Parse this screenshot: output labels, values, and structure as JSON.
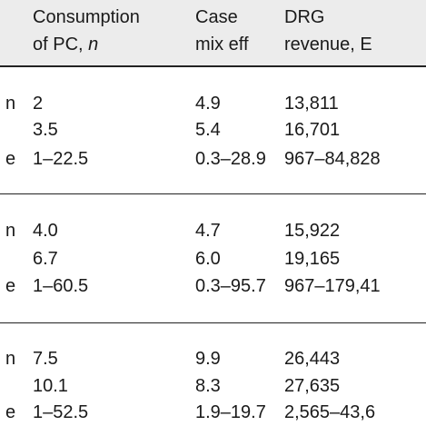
{
  "header": {
    "col1_line1": "Consumption",
    "col1_line2_prefix": "of PC, ",
    "col1_line2_var": "n",
    "col2_line1": "Case",
    "col2_line2": "mix eff",
    "col3_line1": "DRG",
    "col3_line2": "revenue, E"
  },
  "groups": [
    {
      "rows": [
        {
          "stat": "n",
          "c1": "2",
          "c2": "4.9",
          "c3": "13,811"
        },
        {
          "stat": "",
          "c1": "3.5",
          "c2": "5.4",
          "c3": "16,701"
        },
        {
          "stat": "e",
          "c1": "1–22.5",
          "c2": "0.3–28.9",
          "c3": "967–84,828"
        }
      ]
    },
    {
      "rows": [
        {
          "stat": "n",
          "c1": "4.0",
          "c2": "4.7",
          "c3": "15,922"
        },
        {
          "stat": "",
          "c1": "6.7",
          "c2": "6.0",
          "c3": "19,165"
        },
        {
          "stat": "e",
          "c1": "1–60.5",
          "c2": "0.3–95.7",
          "c3": "967–179,41"
        }
      ]
    },
    {
      "rows": [
        {
          "stat": "n",
          "c1": "7.5",
          "c2": "9.9",
          "c3": "26,443"
        },
        {
          "stat": "",
          "c1": "10.1",
          "c2": "8.3",
          "c3": "27,635"
        },
        {
          "stat": "e",
          "c1": "1–52.5",
          "c2": "1.9–19.7",
          "c3": "2,565–43,6"
        }
      ]
    }
  ]
}
